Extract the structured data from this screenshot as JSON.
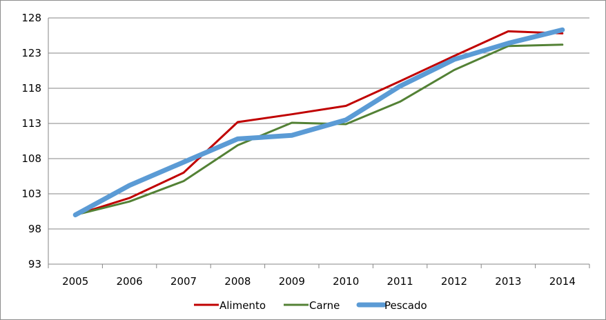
{
  "chart_data": {
    "type": "line",
    "title": "",
    "xlabel": "",
    "ylabel": "",
    "categories": [
      "2005",
      "2006",
      "2007",
      "2008",
      "2009",
      "2010",
      "2011",
      "2012",
      "2013",
      "2014"
    ],
    "ylim": [
      93,
      128
    ],
    "yticks": [
      93,
      98,
      103,
      108,
      113,
      118,
      123,
      128
    ],
    "grid": true,
    "legend_position": "bottom",
    "series": [
      {
        "name": "Alimento",
        "color": "#c00000",
        "values": [
          100.0,
          102.4,
          106.0,
          113.2,
          114.3,
          115.5,
          119.0,
          122.6,
          126.1,
          125.8
        ]
      },
      {
        "name": "Carne",
        "color": "#538135",
        "values": [
          100.0,
          101.9,
          104.8,
          109.9,
          113.1,
          112.9,
          116.1,
          120.6,
          124.0,
          124.2
        ]
      },
      {
        "name": "Pescado",
        "color": "#5b9bd5",
        "values": [
          100.0,
          104.2,
          107.5,
          110.8,
          111.3,
          113.5,
          118.3,
          122.1,
          124.4,
          126.3
        ]
      }
    ]
  }
}
